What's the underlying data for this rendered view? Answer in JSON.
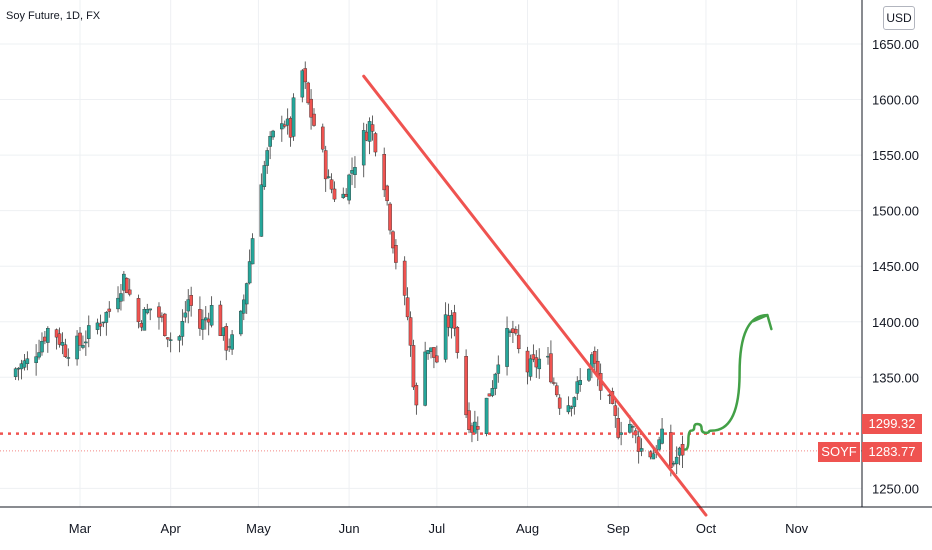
{
  "symbol_label": "Soy Future, 1D, FX",
  "currency": "USD",
  "colors": {
    "up": "#26a69a",
    "down": "#ef5350",
    "trendline": "#ef5350",
    "support": "#ef5350",
    "projection": "#43a047",
    "grid": "#eef0f3"
  },
  "price_tags": {
    "support_value": "1299.32",
    "ticker": "SOYF",
    "last_value": "1283.77"
  },
  "chart_data": {
    "type": "candlestick",
    "y_ticks": [
      "1650.00",
      "1600.00",
      "1550.00",
      "1500.00",
      "1450.00",
      "1400.00",
      "1350.00",
      "1250.00"
    ],
    "y_tick_values": [
      1650,
      1600,
      1550,
      1500,
      1450,
      1400,
      1350,
      1250
    ],
    "x_ticks": [
      "Mar",
      "Apr",
      "May",
      "Jun",
      "Jul",
      "Aug",
      "Sep",
      "Oct",
      "Nov"
    ],
    "ylim": [
      1228,
      1685
    ],
    "support_level": 1299.32,
    "last_price": 1283.77,
    "trendline": {
      "start": [
        "Jun 06",
        1621
      ],
      "end": [
        "Oct 01",
        1226
      ]
    },
    "projection_arrow": [
      [
        "Sep 24",
        1285
      ],
      [
        "Sep 26",
        1302
      ],
      [
        "Sep 28",
        1308
      ],
      [
        "Oct 01",
        1300
      ],
      [
        "Oct 03",
        1302
      ],
      [
        "Oct 22",
        1406
      ]
    ],
    "close_path": [
      [
        "Feb 05",
        1355
      ],
      [
        "Feb 12",
        1365
      ],
      [
        "Feb 19",
        1398
      ],
      [
        "Feb 24",
        1375
      ],
      [
        "Mar 01",
        1380
      ],
      [
        "Mar 06",
        1395
      ],
      [
        "Mar 11",
        1410
      ],
      [
        "Mar 16",
        1440
      ],
      [
        "Mar 21",
        1400
      ],
      [
        "Mar 26",
        1415
      ],
      [
        "Mar 31",
        1390
      ],
      [
        "Apr 03",
        1375
      ],
      [
        "Apr 07",
        1420
      ],
      [
        "Apr 11",
        1395
      ],
      [
        "Apr 15",
        1412
      ],
      [
        "Apr 20",
        1380
      ],
      [
        "Apr 24",
        1385
      ],
      [
        "Apr 28",
        1455
      ],
      [
        "May 01",
        1520
      ],
      [
        "May 05",
        1560
      ],
      [
        "May 09",
        1585
      ],
      [
        "May 12",
        1570
      ],
      [
        "May 15",
        1640
      ],
      [
        "May 18",
        1595
      ],
      [
        "May 22",
        1560
      ],
      [
        "May 25",
        1525
      ],
      [
        "May 29",
        1505
      ],
      [
        "Jun 01",
        1530
      ],
      [
        "Jun 05",
        1560
      ],
      [
        "Jun 08",
        1578
      ],
      [
        "Jun 12",
        1545
      ],
      [
        "Jun 15",
        1490
      ],
      [
        "Jun 18",
        1440
      ],
      [
        "Jun 21",
        1405
      ],
      [
        "Jun 24",
        1320
      ],
      [
        "Jun 27",
        1380
      ],
      [
        "Jul 01",
        1365
      ],
      [
        "Jul 04",
        1398
      ],
      [
        "Jul 07",
        1400
      ],
      [
        "Jul 10",
        1325
      ],
      [
        "Jul 13",
        1305
      ],
      [
        "Jul 16",
        1312
      ],
      [
        "Jul 20",
        1345
      ],
      [
        "Jul 23",
        1382
      ],
      [
        "Jul 27",
        1390
      ],
      [
        "Jul 31",
        1355
      ],
      [
        "Aug 04",
        1362
      ],
      [
        "Aug 07",
        1372
      ],
      [
        "Aug 10",
        1345
      ],
      [
        "Aug 13",
        1320
      ],
      [
        "Aug 17",
        1335
      ],
      [
        "Aug 20",
        1350
      ],
      [
        "Aug 23",
        1368
      ],
      [
        "Aug 26",
        1340
      ],
      [
        "Aug 29",
        1325
      ],
      [
        "Sep 01",
        1303
      ],
      [
        "Sep 04",
        1315
      ],
      [
        "Sep 07",
        1295
      ],
      [
        "Sep 10",
        1280
      ],
      [
        "Sep 13",
        1283
      ],
      [
        "Sep 16",
        1295
      ],
      [
        "Sep 19",
        1270
      ],
      [
        "Sep 21",
        1278
      ],
      [
        "Sep 23",
        1284
      ]
    ]
  }
}
